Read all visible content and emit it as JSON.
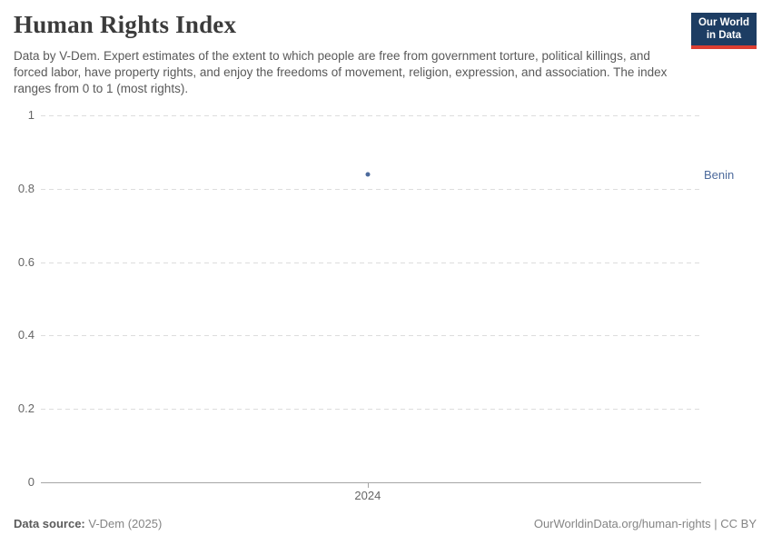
{
  "header": {
    "title": "Human Rights Index",
    "subtitle": "Data by V-Dem. Expert estimates of the extent to which people are free from government torture, political killings, and forced labor, have property rights, and enjoy the freedoms of movement, religion, expression, and association. The index ranges from 0 to 1 (most rights).",
    "logo": {
      "line1": "Our World",
      "line2": "in Data",
      "bg_color": "#1d3d63",
      "stripe_color": "#dc3e32"
    }
  },
  "chart_data": {
    "type": "scatter",
    "title": "Human Rights Index",
    "x": [
      2024
    ],
    "xticks": [
      "2024"
    ],
    "series": [
      {
        "name": "Benin",
        "values": [
          0.84
        ],
        "color": "#4c6a9c"
      }
    ],
    "ylim": [
      0,
      1
    ],
    "ytick_values": [
      0,
      0.2,
      0.4,
      0.6,
      0.8,
      1
    ],
    "ytick_labels": [
      "0",
      "0.2",
      "0.4",
      "0.6",
      "0.8",
      "1"
    ],
    "grid": "horizontal-dashed",
    "legend_position": "entity-label-right"
  },
  "footer": {
    "source_label": "Data source:",
    "source_value": "V-Dem (2025)",
    "link": "OurWorldinData.org/human-rights | CC BY"
  },
  "colors": {
    "title_text": "#3b3b3b",
    "subtitle_text": "#595959",
    "axis_text": "#666666",
    "gridline": "#dddddd",
    "axis_line": "#a5a5a5",
    "accent_blue": "#4c6a9c"
  }
}
